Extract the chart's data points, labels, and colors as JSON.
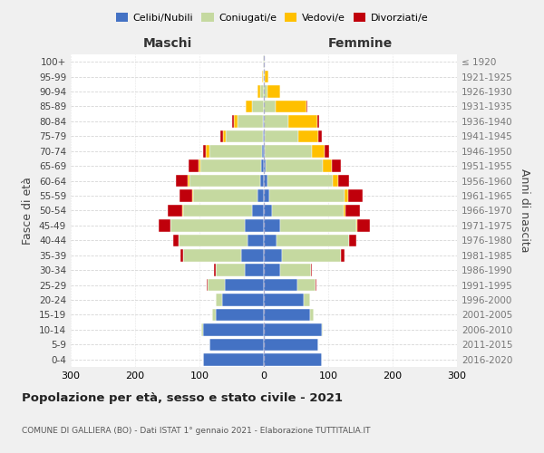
{
  "age_groups": [
    "100+",
    "95-99",
    "90-94",
    "85-89",
    "80-84",
    "75-79",
    "70-74",
    "65-69",
    "60-64",
    "55-59",
    "50-54",
    "45-49",
    "40-44",
    "35-39",
    "30-34",
    "25-29",
    "20-24",
    "15-19",
    "10-14",
    "5-9",
    "0-4"
  ],
  "birth_years": [
    "≤ 1920",
    "1921-1925",
    "1926-1930",
    "1931-1935",
    "1936-1940",
    "1941-1945",
    "1946-1950",
    "1951-1955",
    "1956-1960",
    "1961-1965",
    "1966-1970",
    "1971-1975",
    "1976-1980",
    "1981-1985",
    "1986-1990",
    "1991-1995",
    "1996-2000",
    "2001-2005",
    "2006-2010",
    "2011-2015",
    "2016-2020"
  ],
  "males_celibi": [
    0,
    0,
    0,
    0,
    1,
    1,
    3,
    4,
    6,
    10,
    18,
    30,
    25,
    35,
    30,
    60,
    65,
    75,
    95,
    85,
    95
  ],
  "males_coniugati": [
    1,
    2,
    5,
    18,
    40,
    58,
    82,
    95,
    110,
    100,
    108,
    115,
    108,
    90,
    45,
    28,
    10,
    5,
    2,
    0,
    0
  ],
  "males_vedovi": [
    0,
    1,
    5,
    10,
    5,
    5,
    5,
    3,
    2,
    1,
    1,
    0,
    0,
    0,
    0,
    0,
    0,
    0,
    0,
    0,
    0
  ],
  "males_divorziati": [
    0,
    0,
    0,
    0,
    3,
    4,
    5,
    15,
    18,
    20,
    22,
    18,
    8,
    5,
    2,
    1,
    0,
    0,
    0,
    0,
    0
  ],
  "females_nubili": [
    0,
    0,
    0,
    0,
    0,
    1,
    2,
    3,
    5,
    8,
    12,
    25,
    20,
    28,
    25,
    52,
    62,
    72,
    90,
    85,
    90
  ],
  "females_coniugate": [
    1,
    2,
    6,
    18,
    38,
    52,
    72,
    88,
    102,
    118,
    112,
    118,
    112,
    92,
    48,
    28,
    10,
    5,
    2,
    0,
    0
  ],
  "females_vedove": [
    1,
    5,
    20,
    48,
    45,
    32,
    20,
    14,
    8,
    5,
    3,
    2,
    1,
    0,
    0,
    0,
    0,
    0,
    0,
    0,
    0
  ],
  "females_divorziate": [
    0,
    0,
    0,
    1,
    3,
    5,
    8,
    15,
    18,
    22,
    22,
    20,
    10,
    5,
    2,
    1,
    0,
    0,
    0,
    0,
    0
  ],
  "color_celibi": "#4472c4",
  "color_coniugati": "#c5d9a0",
  "color_vedovi": "#ffc000",
  "color_divorziati": "#c0000b",
  "title": "Popolazione per età, sesso e stato civile - 2021",
  "subtitle": "COMUNE DI GALLIERA (BO) - Dati ISTAT 1° gennaio 2021 - Elaborazione TUTTITALIA.IT",
  "label_maschi": "Maschi",
  "label_femmine": "Femmine",
  "ylabel_left": "Fasce di età",
  "ylabel_right": "Anni di nascita",
  "legend_labels": [
    "Celibi/Nubili",
    "Coniugati/e",
    "Vedovi/e",
    "Divorziati/e"
  ],
  "xlim": 300,
  "bg_color": "#f0f0f0",
  "plot_bg": "#ffffff",
  "grid_color": "#cccccc"
}
